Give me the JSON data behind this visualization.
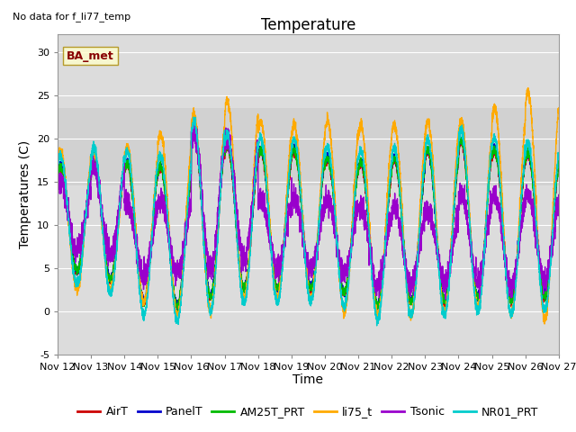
{
  "title": "Temperature",
  "ylabel": "Temperatures (C)",
  "xlabel": "Time",
  "note": "No data for f_li77_temp",
  "legend_label": "BA_met",
  "series_labels": [
    "AirT",
    "PanelT",
    "AM25T_PRT",
    "li75_t",
    "Tsonic",
    "NR01_PRT"
  ],
  "series_colors": [
    "#cc0000",
    "#0000cc",
    "#00bb00",
    "#ffaa00",
    "#9900cc",
    "#00cccc"
  ],
  "ylim": [
    -5,
    32
  ],
  "xlim_start": 0,
  "xlim_end": 15,
  "xtick_labels": [
    "Nov 12",
    "Nov 13",
    "Nov 14",
    "Nov 15",
    "Nov 16",
    "Nov 17",
    "Nov 18",
    "Nov 19",
    "Nov 20",
    "Nov 21",
    "Nov 22",
    "Nov 23",
    "Nov 24",
    "Nov 25",
    "Nov 26",
    "Nov 27"
  ],
  "ytick_values": [
    -5,
    0,
    5,
    10,
    15,
    20,
    25,
    30
  ],
  "shading_ymin": 14.5,
  "shading_ymax": 23.5,
  "linewidth": 1.0,
  "bg_color": "#dcdcdc",
  "title_fontsize": 12,
  "axis_fontsize": 10,
  "tick_fontsize": 8,
  "legend_fontsize": 9
}
